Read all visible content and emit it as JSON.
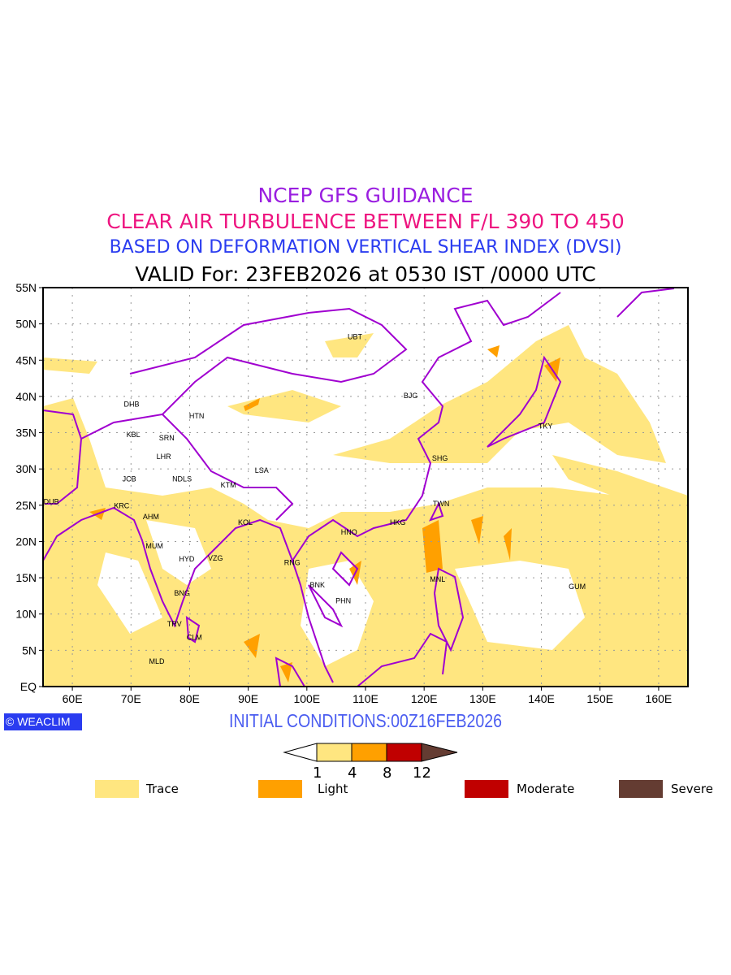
{
  "titles": {
    "line1": "NCEP GFS GUIDANCE",
    "line2": "CLEAR AIR TURBULENCE BETWEEN F/L 390 TO 450",
    "line3": "BASED ON DEFORMATION VERTICAL SHEAR INDEX (DVSI)",
    "line4": "VALID For: 23FEB2026 at 0530 IST /0000 UTC"
  },
  "map": {
    "lon_range": [
      55,
      165
    ],
    "lat_range": [
      0,
      55
    ],
    "lon_ticks": [
      "60E",
      "70E",
      "80E",
      "90E",
      "100E",
      "110E",
      "120E",
      "130E",
      "140E",
      "150E",
      "160E"
    ],
    "lat_ticks": [
      "EQ",
      "5N",
      "10N",
      "15N",
      "20N",
      "25N",
      "30N",
      "35N",
      "40N",
      "45N",
      "50N",
      "55N"
    ],
    "cities": [
      {
        "code": "UBT",
        "lon": 108.2,
        "lat": 48.2
      },
      {
        "code": "BJG",
        "lon": 117.7,
        "lat": 40.1
      },
      {
        "code": "TKY",
        "lon": 140.7,
        "lat": 35.9
      },
      {
        "code": "SHG",
        "lon": 122.7,
        "lat": 31.5
      },
      {
        "code": "TWN",
        "lon": 122.9,
        "lat": 25.2
      },
      {
        "code": "HKG",
        "lon": 115.5,
        "lat": 22.6
      },
      {
        "code": "HNO",
        "lon": 107.2,
        "lat": 21.3
      },
      {
        "code": "MNL",
        "lon": 122.3,
        "lat": 14.8
      },
      {
        "code": "GUM",
        "lon": 146.1,
        "lat": 13.8
      },
      {
        "code": "RNG",
        "lon": 97.5,
        "lat": 17.1
      },
      {
        "code": "BNK",
        "lon": 101.8,
        "lat": 14.0
      },
      {
        "code": "PHN",
        "lon": 106.2,
        "lat": 11.8
      },
      {
        "code": "DHB",
        "lon": 70.1,
        "lat": 38.9
      },
      {
        "code": "HTN",
        "lon": 81.2,
        "lat": 37.3
      },
      {
        "code": "KBL",
        "lon": 70.4,
        "lat": 34.7
      },
      {
        "code": "SRN",
        "lon": 76.1,
        "lat": 34.3
      },
      {
        "code": "LHR",
        "lon": 75.6,
        "lat": 31.7
      },
      {
        "code": "JCB",
        "lon": 69.7,
        "lat": 28.6
      },
      {
        "code": "NDLS",
        "lon": 78.7,
        "lat": 28.6
      },
      {
        "code": "KTM",
        "lon": 86.6,
        "lat": 27.8
      },
      {
        "code": "LSA",
        "lon": 92.3,
        "lat": 29.8
      },
      {
        "code": "DUB",
        "lon": 56.4,
        "lat": 25.5
      },
      {
        "code": "KRC",
        "lon": 68.4,
        "lat": 24.9
      },
      {
        "code": "AHM",
        "lon": 73.4,
        "lat": 23.4
      },
      {
        "code": "KOL",
        "lon": 89.5,
        "lat": 22.6
      },
      {
        "code": "MUM",
        "lon": 74.0,
        "lat": 19.4
      },
      {
        "code": "HYD",
        "lon": 79.5,
        "lat": 17.6
      },
      {
        "code": "VZG",
        "lon": 84.4,
        "lat": 17.7
      },
      {
        "code": "BNG",
        "lon": 78.7,
        "lat": 12.9
      },
      {
        "code": "TRV",
        "lon": 77.4,
        "lat": 8.6
      },
      {
        "code": "CLM",
        "lon": 80.8,
        "lat": 6.8
      },
      {
        "code": "MLD",
        "lon": 74.4,
        "lat": 3.5
      }
    ]
  },
  "branding": "WEACLIM",
  "initial_conditions": "INITIAL CONDITIONS:00Z16FEB2026",
  "colorbar": {
    "ticks": [
      "1",
      "4",
      "8",
      "12"
    ],
    "colors": [
      "#ffe680",
      "#ffa000",
      "#c00000",
      "#643c32"
    ]
  },
  "legend": [
    {
      "label": "Trace",
      "color": "#ffe680"
    },
    {
      "label": "Light",
      "color": "#ffa000"
    },
    {
      "label": "Moderate",
      "color": "#c00000"
    },
    {
      "label": "Severe",
      "color": "#643c32"
    }
  ]
}
